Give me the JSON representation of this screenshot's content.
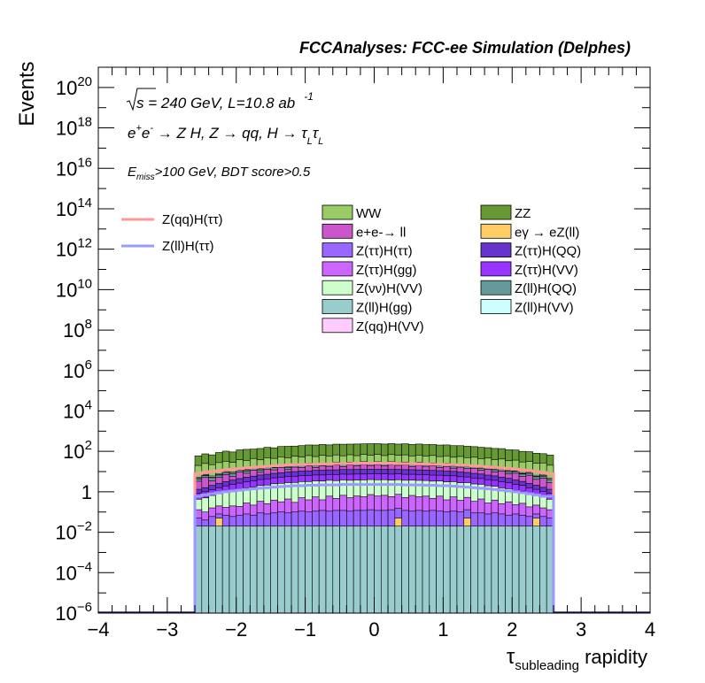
{
  "chart_data": {
    "type": "bar",
    "stacked": true,
    "title": "FCCAnalyses: FCC-ee Simulation (Delphes)",
    "xlabel": "rapidity",
    "xlabel_symbol": "τ",
    "xlabel_subscript": "subleading",
    "ylabel": "Events",
    "xlim": [
      -4,
      4
    ],
    "ylog": true,
    "ylim": [
      1e-06,
      1e+21
    ],
    "x_ticks": [
      "−4",
      "−3",
      "−2",
      "−1",
      "0",
      "1",
      "2",
      "3",
      "4"
    ],
    "y_ticks": [
      {
        "base": "10",
        "exp": "−6"
      },
      {
        "base": "10",
        "exp": "−4"
      },
      {
        "base": "10",
        "exp": "−2"
      },
      {
        "base": "1",
        "exp": ""
      },
      {
        "base": "10",
        "exp": "2"
      },
      {
        "base": "10",
        "exp": "4"
      },
      {
        "base": "10",
        "exp": "6"
      },
      {
        "base": "10",
        "exp": "8"
      },
      {
        "base": "10",
        "exp": "10"
      },
      {
        "base": "10",
        "exp": "12"
      },
      {
        "base": "10",
        "exp": "14"
      },
      {
        "base": "10",
        "exp": "16"
      },
      {
        "base": "10",
        "exp": "18"
      },
      {
        "base": "10",
        "exp": "20"
      }
    ],
    "annotations": {
      "sqrt_s": "s = 240 GeV, L=10.8 ab",
      "lumi_exp": "-1",
      "process": "e+e- → Z H, Z → qq, H → τLτL",
      "selection": "E_miss>100 GeV, BDT score>0.5"
    },
    "bin_range": [
      -2.6,
      2.6
    ],
    "series": [
      {
        "name": "Z(ll)H(gg)",
        "kind": "stack",
        "color": "#99cccc",
        "values": [
          0.02,
          0.02,
          0.02,
          0.02,
          0.02,
          0.02,
          0.02,
          0.02,
          0.02,
          0.02,
          0.02,
          0.02,
          0.02,
          0.02,
          0.02,
          0.02,
          0.02,
          0.02,
          0.02,
          0.02,
          0.02,
          0.02,
          0.02,
          0.02,
          0.02,
          0.02,
          0.02,
          0.02,
          0.02,
          0.02,
          0.02,
          0.02,
          0.02,
          0.02,
          0.02,
          0.02,
          0.02,
          0.02,
          0.02,
          0.02,
          0.02,
          0.02,
          0.02,
          0.02,
          0.02,
          0.02,
          0.02,
          0.02,
          0.02,
          0.02,
          0.02,
          0.02
        ]
      },
      {
        "name": "eγ → eZ(ll)",
        "kind": "stack",
        "color": "#ffcc66",
        "values": [
          0.0,
          0.0,
          0.0,
          0.03,
          0.0,
          0.0,
          0.0,
          0.0,
          0.0,
          0.0,
          0.0,
          0.0,
          0.0,
          0.0,
          0.0,
          0.0,
          0.0,
          0.0,
          0.0,
          0.0,
          0.0,
          0.0,
          0.0,
          0.0,
          0.0,
          0.0,
          0.0,
          0.0,
          0.0,
          0.03,
          0.0,
          0.0,
          0.0,
          0.0,
          0.0,
          0.0,
          0.0,
          0.0,
          0.0,
          0.03,
          0.0,
          0.0,
          0.0,
          0.0,
          0.0,
          0.0,
          0.0,
          0.0,
          0.0,
          0.03,
          0.0,
          0.0
        ]
      },
      {
        "name": "Z(ττ)H(ττ)",
        "kind": "stack",
        "color": "#9966ff",
        "values": [
          0.03,
          0.02,
          0.04,
          0.03,
          0.05,
          0.04,
          0.05,
          0.06,
          0.05,
          0.07,
          0.06,
          0.07,
          0.08,
          0.07,
          0.08,
          0.09,
          0.08,
          0.09,
          0.1,
          0.09,
          0.1,
          0.1,
          0.09,
          0.1,
          0.1,
          0.11,
          0.1,
          0.1,
          0.11,
          0.1,
          0.1,
          0.09,
          0.1,
          0.09,
          0.1,
          0.09,
          0.08,
          0.09,
          0.08,
          0.08,
          0.07,
          0.07,
          0.06,
          0.07,
          0.06,
          0.05,
          0.06,
          0.05,
          0.04,
          0.03,
          0.04,
          0.03
        ]
      },
      {
        "name": "Z(ττ)H(gg)",
        "kind": "stack",
        "color": "#cc66ff",
        "values": [
          0.08,
          0.06,
          0.1,
          0.12,
          0.1,
          0.14,
          0.12,
          0.2,
          0.15,
          0.25,
          0.18,
          0.3,
          0.22,
          0.35,
          0.2,
          0.4,
          0.3,
          0.45,
          0.28,
          0.5,
          0.35,
          0.55,
          0.4,
          0.5,
          0.45,
          0.6,
          0.5,
          0.55,
          0.45,
          0.6,
          0.4,
          0.55,
          0.45,
          0.5,
          0.35,
          0.5,
          0.3,
          0.45,
          0.28,
          0.4,
          0.25,
          0.35,
          0.2,
          0.3,
          0.18,
          0.25,
          0.15,
          0.2,
          0.12,
          0.14,
          0.1,
          0.08
        ]
      },
      {
        "name": "Z(νν)H(VV)",
        "kind": "stack",
        "color": "#ccffcc",
        "values": [
          0.3,
          0.4,
          0.5,
          0.6,
          0.8,
          0.9,
          1.1,
          1.3,
          1.5,
          1.7,
          1.9,
          2.1,
          2.3,
          2.4,
          2.6,
          2.7,
          2.8,
          2.9,
          3.0,
          3.1,
          3.1,
          3.2,
          3.2,
          3.2,
          3.3,
          3.3,
          3.3,
          3.3,
          3.2,
          3.2,
          3.2,
          3.1,
          3.1,
          3.0,
          2.9,
          2.8,
          2.7,
          2.6,
          2.4,
          2.3,
          2.1,
          1.9,
          1.7,
          1.5,
          1.3,
          1.1,
          0.9,
          0.8,
          0.6,
          0.5,
          0.4,
          0.3
        ]
      },
      {
        "name": "Z(ττ)H(VV)",
        "kind": "stack",
        "color": "#9933ff",
        "values": [
          0.4,
          0.5,
          0.6,
          0.8,
          1.0,
          1.2,
          1.4,
          1.6,
          1.8,
          2.0,
          2.2,
          2.4,
          2.6,
          2.8,
          3.0,
          3.1,
          3.2,
          3.3,
          3.4,
          3.5,
          3.6,
          3.6,
          3.7,
          3.7,
          3.7,
          3.8,
          3.8,
          3.7,
          3.7,
          3.7,
          3.6,
          3.6,
          3.5,
          3.4,
          3.3,
          3.2,
          3.1,
          3.0,
          2.8,
          2.6,
          2.4,
          2.2,
          2.0,
          1.8,
          1.6,
          1.4,
          1.2,
          1.0,
          0.8,
          0.6,
          0.5,
          0.4
        ]
      },
      {
        "name": "Z(ττ)H(QQ)",
        "kind": "stack",
        "color": "#6633cc",
        "values": [
          0.5,
          0.6,
          0.8,
          1.0,
          1.2,
          1.5,
          1.8,
          2.1,
          2.4,
          2.7,
          3.0,
          3.3,
          3.6,
          3.9,
          4.1,
          4.3,
          4.5,
          4.7,
          4.8,
          4.9,
          5.0,
          5.1,
          5.1,
          5.2,
          5.2,
          5.2,
          5.2,
          5.2,
          5.2,
          5.1,
          5.1,
          5.0,
          4.9,
          4.8,
          4.7,
          4.5,
          4.3,
          4.1,
          3.9,
          3.6,
          3.3,
          3.0,
          2.7,
          2.4,
          2.1,
          1.8,
          1.5,
          1.2,
          1.0,
          0.8,
          0.6,
          0.5
        ]
      },
      {
        "name": "e+e-→ ll",
        "kind": "stack",
        "color": "#cc55cc",
        "values": [
          2.0,
          3.5,
          1.5,
          2.5,
          4.0,
          2.0,
          5.0,
          3.0,
          6.0,
          2.5,
          5.5,
          4.0,
          7.0,
          3.0,
          6.5,
          5.0,
          8.0,
          4.5,
          7.5,
          6.0,
          9.0,
          5.0,
          8.5,
          6.5,
          10.0,
          7.0,
          9.5,
          6.0,
          10.0,
          7.5,
          9.0,
          5.5,
          8.5,
          6.5,
          8.0,
          5.0,
          7.5,
          4.5,
          7.0,
          5.0,
          6.5,
          4.0,
          6.0,
          3.5,
          5.5,
          3.0,
          4.5,
          2.5,
          4.0,
          2.0,
          3.0,
          1.5
        ]
      },
      {
        "name": "Z(ll)H(QQ)",
        "kind": "stack",
        "color": "#669999",
        "values": [
          1.0,
          1.2,
          1.4,
          1.6,
          1.8,
          2.0,
          2.2,
          2.4,
          2.6,
          2.8,
          3.0,
          3.2,
          3.4,
          3.6,
          3.8,
          4.0,
          4.1,
          4.2,
          4.3,
          4.4,
          4.5,
          4.5,
          4.6,
          4.6,
          4.6,
          4.7,
          4.7,
          4.6,
          4.6,
          4.6,
          4.5,
          4.5,
          4.4,
          4.3,
          4.2,
          4.1,
          4.0,
          3.8,
          3.6,
          3.4,
          3.2,
          3.0,
          2.8,
          2.6,
          2.4,
          2.2,
          2.0,
          1.8,
          1.6,
          1.4,
          1.2,
          1.0
        ]
      },
      {
        "name": "Z(ll)H(VV)",
        "kind": "stack",
        "color": "#ccffff",
        "values": [
          0.3,
          0.35,
          0.4,
          0.45,
          0.5,
          0.55,
          0.6,
          0.65,
          0.7,
          0.75,
          0.8,
          0.85,
          0.9,
          0.95,
          1.0,
          1.0,
          1.05,
          1.05,
          1.1,
          1.1,
          1.1,
          1.15,
          1.15,
          1.15,
          1.15,
          1.15,
          1.15,
          1.15,
          1.15,
          1.15,
          1.1,
          1.1,
          1.1,
          1.05,
          1.05,
          1.0,
          1.0,
          0.95,
          0.9,
          0.85,
          0.8,
          0.75,
          0.7,
          0.65,
          0.6,
          0.55,
          0.5,
          0.45,
          0.4,
          0.35,
          0.3,
          0.3
        ]
      },
      {
        "name": "Z(qq)H(VV)",
        "kind": "stack",
        "color": "#ffccff",
        "values": [
          0.5,
          0.6,
          0.7,
          0.8,
          0.9,
          1.0,
          1.1,
          1.2,
          1.3,
          1.4,
          1.5,
          1.6,
          1.7,
          1.8,
          1.9,
          2.0,
          2.0,
          2.1,
          2.1,
          2.2,
          2.2,
          2.2,
          2.3,
          2.3,
          2.3,
          2.3,
          2.3,
          2.3,
          2.3,
          2.3,
          2.2,
          2.2,
          2.2,
          2.1,
          2.1,
          2.0,
          2.0,
          1.9,
          1.8,
          1.7,
          1.6,
          1.5,
          1.4,
          1.3,
          1.2,
          1.1,
          1.0,
          0.9,
          0.8,
          0.7,
          0.6,
          0.5
        ]
      },
      {
        "name": "WW",
        "kind": "stack",
        "color": "#99cc66",
        "values": [
          15,
          18,
          16,
          20,
          22,
          19,
          25,
          23,
          28,
          24,
          30,
          27,
          32,
          29,
          34,
          30,
          36,
          32,
          37,
          33,
          38,
          35,
          39,
          34,
          40,
          36,
          40,
          35,
          39,
          36,
          38,
          34,
          37,
          33,
          36,
          32,
          35,
          30,
          33,
          29,
          31,
          27,
          29,
          25,
          27,
          23,
          25,
          21,
          22,
          19,
          20,
          16
        ]
      },
      {
        "name": "ZZ",
        "kind": "stack",
        "color": "#669933",
        "values": [
          40,
          50,
          45,
          60,
          70,
          65,
          80,
          90,
          85,
          100,
          110,
          105,
          120,
          130,
          125,
          140,
          145,
          150,
          155,
          150,
          160,
          165,
          160,
          170,
          165,
          175,
          170,
          168,
          172,
          165,
          170,
          160,
          165,
          158,
          155,
          150,
          148,
          140,
          135,
          130,
          120,
          115,
          105,
          100,
          95,
          85,
          80,
          70,
          65,
          55,
          50,
          45
        ]
      },
      {
        "name": "Z(qq)H(ττ)",
        "kind": "line",
        "color": "#ff9999",
        "values": [
          8,
          9,
          10,
          11,
          12,
          13,
          14,
          15,
          16,
          17,
          18,
          19,
          20,
          21,
          22,
          22,
          23,
          23,
          24,
          24,
          25,
          25,
          25,
          26,
          26,
          26,
          26,
          26,
          26,
          25,
          25,
          25,
          24,
          24,
          23,
          23,
          22,
          22,
          21,
          20,
          19,
          18,
          17,
          16,
          15,
          14,
          13,
          12,
          11,
          10,
          9,
          8
        ]
      },
      {
        "name": "Z(ll)H(ττ)",
        "kind": "line",
        "color": "#9999ff",
        "values": [
          0.6,
          0.7,
          0.8,
          0.9,
          1.0,
          1.1,
          1.2,
          1.3,
          1.4,
          1.5,
          1.6,
          1.7,
          1.8,
          1.9,
          2.0,
          2.0,
          2.1,
          2.1,
          2.2,
          2.2,
          2.2,
          2.3,
          2.3,
          2.3,
          2.3,
          2.3,
          2.3,
          2.3,
          2.3,
          2.3,
          2.2,
          2.2,
          2.2,
          2.1,
          2.1,
          2.0,
          2.0,
          1.9,
          1.8,
          1.7,
          1.6,
          1.5,
          1.4,
          1.3,
          1.2,
          1.1,
          1.0,
          0.9,
          0.8,
          0.7,
          0.6,
          0.6
        ]
      }
    ],
    "legend_left": [
      "Z(qq)H(ττ)",
      "Z(ll)H(ττ)"
    ],
    "legend_grid": [
      [
        "WW",
        "ZZ"
      ],
      [
        "e+e-→ ll",
        "eγ → eZ(ll)"
      ],
      [
        "Z(ττ)H(ττ)",
        "Z(ττ)H(QQ)"
      ],
      [
        "Z(ττ)H(gg)",
        "Z(ττ)H(VV)"
      ],
      [
        "Z(νν)H(VV)",
        "Z(ll)H(QQ)"
      ],
      [
        "Z(ll)H(gg)",
        "Z(ll)H(VV)"
      ],
      [
        "Z(qq)H(VV)",
        ""
      ]
    ]
  }
}
